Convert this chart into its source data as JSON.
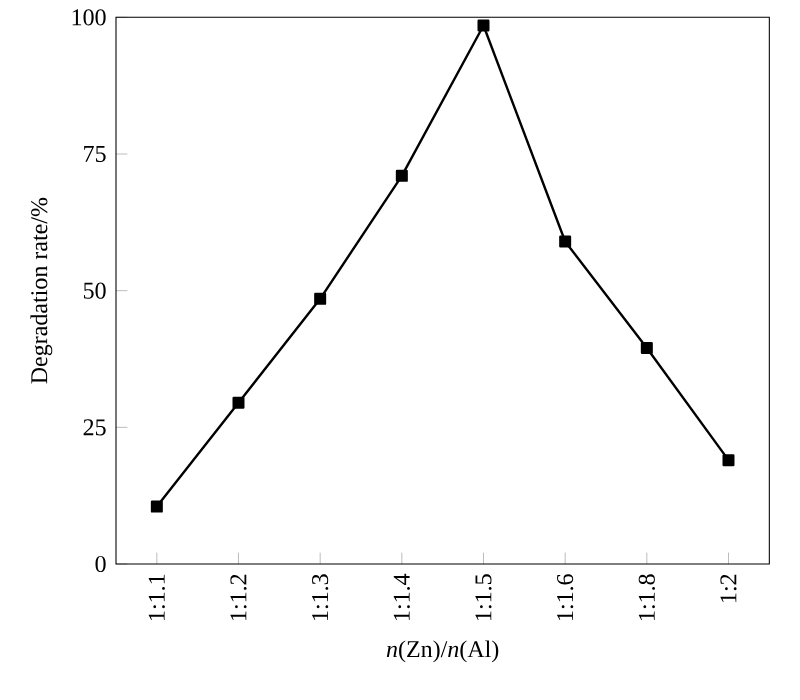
{
  "chart_data": {
    "type": "line",
    "xlabel": "*n*(Zn)/*n*(Al)",
    "ylabel": "Degradation rate/%",
    "categories": [
      "1:1.1",
      "1:1.2",
      "1:1.3",
      "1:1.4",
      "1:1.5",
      "1:1.6",
      "1:1.8",
      "1:2"
    ],
    "series": [
      {
        "color": "#000000",
        "values": [
          10.5,
          29.5,
          48.5,
          71,
          98.5,
          59,
          39.5,
          19
        ]
      }
    ],
    "ylim": [
      0,
      100
    ],
    "yticks": [
      0,
      25,
      50,
      75,
      100
    ],
    "marker": "square",
    "line_style": "solid",
    "grid": false
  }
}
